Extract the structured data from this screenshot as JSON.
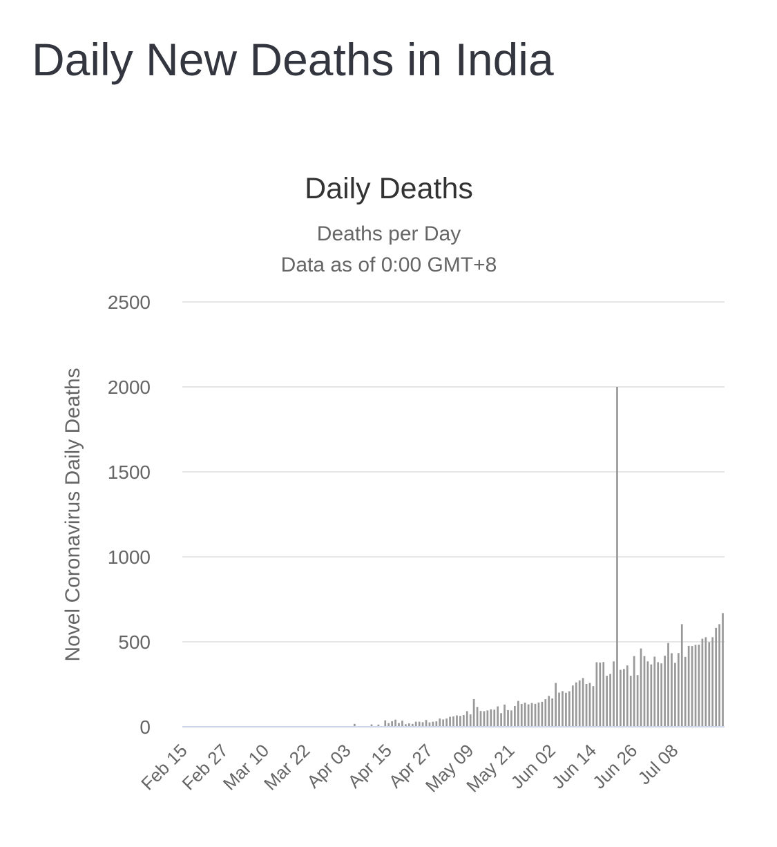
{
  "page": {
    "title": "Daily New Deaths in India"
  },
  "chart_data": {
    "type": "bar",
    "title": "Daily Deaths",
    "subtitle": [
      "Deaths per Day",
      "Data as of 0:00 GMT+8"
    ],
    "xlabel": "",
    "ylabel": "Novel Coronavirus Daily Deaths",
    "ylim": [
      0,
      2500
    ],
    "y_ticks": [
      0,
      500,
      1000,
      1500,
      2000,
      2500
    ],
    "x_tick_labels": [
      "Feb 15",
      "Feb 27",
      "Mar 10",
      "Mar 22",
      "Apr 03",
      "Apr 15",
      "Apr 27",
      "May 09",
      "May 21",
      "Jun 02",
      "Jun 14",
      "Jun 26",
      "Jul 08"
    ],
    "x_start": "Feb 15",
    "grid": true,
    "legend": "none",
    "bar_color": "#999999",
    "gridline_color": "#e6e6e6",
    "baseline_color": "#ccd6eb",
    "values": [
      0,
      0,
      0,
      0,
      0,
      0,
      0,
      0,
      0,
      0,
      0,
      0,
      0,
      0,
      0,
      0,
      0,
      0,
      0,
      0,
      0,
      0,
      0,
      0,
      0,
      0,
      0,
      0,
      0,
      0,
      0,
      0,
      0,
      0,
      0,
      0,
      0,
      0,
      0,
      0,
      0,
      0,
      0,
      0,
      0,
      0,
      0,
      0,
      0,
      0,
      17,
      0,
      0,
      0,
      0,
      14,
      0,
      13,
      0,
      38,
      22,
      33,
      42,
      22,
      36,
      15,
      20,
      17,
      30,
      30,
      27,
      40,
      26,
      30,
      32,
      49,
      43,
      49,
      59,
      61,
      67,
      64,
      69,
      92,
      73,
      163,
      117,
      93,
      92,
      96,
      103,
      101,
      120,
      80,
      131,
      98,
      96,
      122,
      152,
      134,
      142,
      132,
      140,
      135,
      143,
      147,
      162,
      182,
      167,
      258,
      201,
      210,
      200,
      209,
      243,
      261,
      273,
      287,
      252,
      258,
      239,
      380,
      378,
      381,
      300,
      311,
      385,
      2000,
      335,
      340,
      361,
      300,
      416,
      304,
      461,
      416,
      385,
      367,
      413,
      380,
      373,
      418,
      493,
      433,
      376,
      434,
      604,
      411,
      476,
      475,
      482,
      483,
      518,
      527,
      498,
      527,
      582,
      604,
      669
    ]
  }
}
